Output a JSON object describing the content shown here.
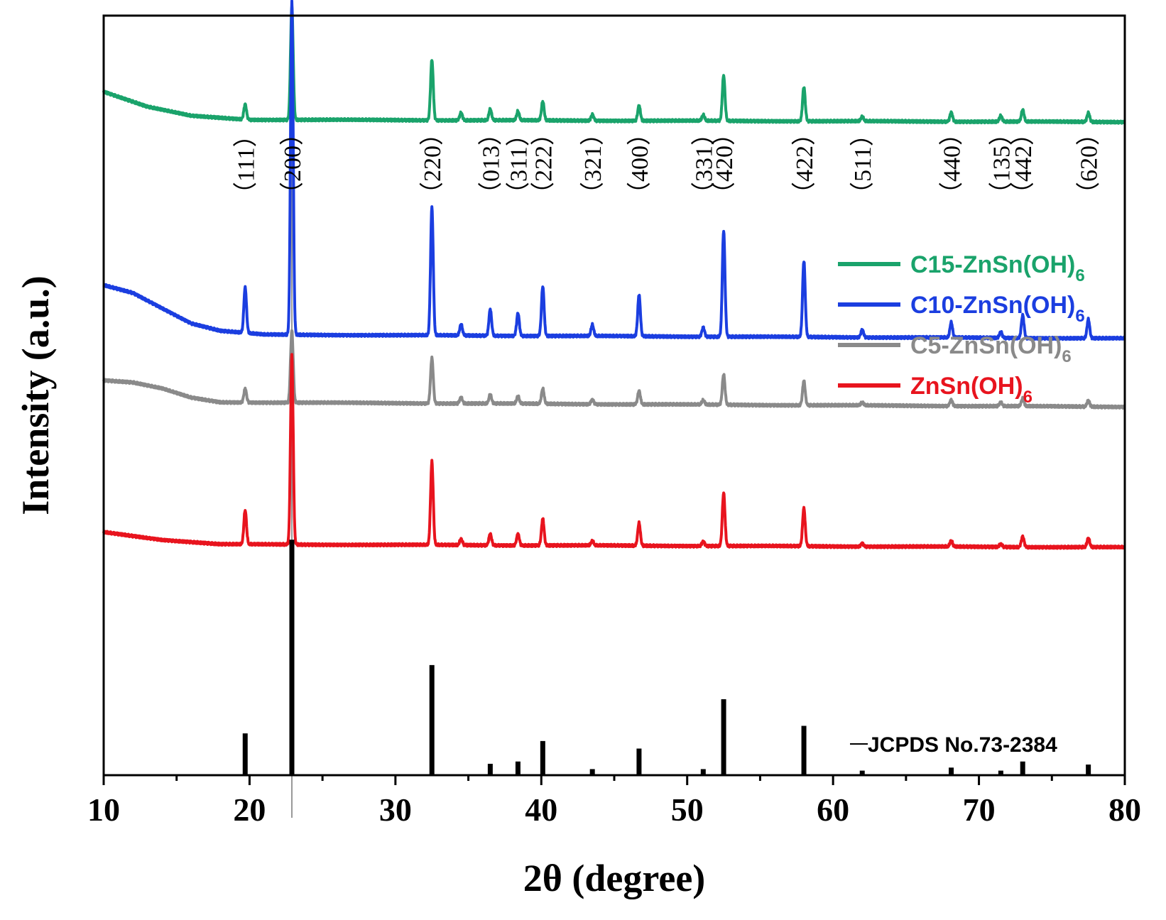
{
  "chart_data": {
    "type": "line",
    "title": "",
    "xlabel": "2θ (degree)",
    "ylabel": "Intensity (a.u.)",
    "xlim": [
      10,
      80
    ],
    "xticks": [
      10,
      20,
      30,
      40,
      50,
      60,
      70,
      80
    ],
    "tick_labels": [
      "10",
      "20",
      "30",
      "40",
      "50",
      "60",
      "70",
      "80"
    ],
    "legend_position": "right-middle",
    "series": [
      {
        "name": "C15-ZnSn(OH)6",
        "label_main": "C15-ZnSn(OH)",
        "label_sub": "6",
        "color": "#1aa36b",
        "offset": 0.86,
        "background": [
          [
            10,
            0.04
          ],
          [
            13,
            0.02
          ],
          [
            16,
            0.008
          ],
          [
            20,
            0.003
          ],
          [
            80,
            0.0
          ]
        ],
        "peaks": [
          [
            19.7,
            0.02
          ],
          [
            22.9,
            0.15
          ],
          [
            32.5,
            0.08
          ],
          [
            34.5,
            0.01
          ],
          [
            36.5,
            0.015
          ],
          [
            38.4,
            0.012
          ],
          [
            40.1,
            0.025
          ],
          [
            43.5,
            0.008
          ],
          [
            46.7,
            0.02
          ],
          [
            51.1,
            0.008
          ],
          [
            52.5,
            0.06
          ],
          [
            58.0,
            0.045
          ],
          [
            62.0,
            0.006
          ],
          [
            68.1,
            0.012
          ],
          [
            71.5,
            0.008
          ],
          [
            73.0,
            0.016
          ],
          [
            77.5,
            0.012
          ]
        ]
      },
      {
        "name": "C10-ZnSn(OH)6",
        "label_main": "C10-ZnSn(OH)",
        "label_sub": "6",
        "color": "#1b3ee0",
        "offset": 0.575,
        "background": [
          [
            10,
            0.07
          ],
          [
            12,
            0.06
          ],
          [
            14,
            0.04
          ],
          [
            16,
            0.02
          ],
          [
            18,
            0.01
          ],
          [
            21,
            0.005
          ],
          [
            80,
            0.0
          ]
        ],
        "peaks": [
          [
            19.7,
            0.06
          ],
          [
            22.9,
            0.44
          ],
          [
            32.5,
            0.17
          ],
          [
            34.5,
            0.015
          ],
          [
            36.5,
            0.035
          ],
          [
            38.4,
            0.03
          ],
          [
            40.1,
            0.065
          ],
          [
            43.5,
            0.015
          ],
          [
            46.7,
            0.055
          ],
          [
            51.1,
            0.012
          ],
          [
            52.5,
            0.14
          ],
          [
            58.0,
            0.1
          ],
          [
            62.0,
            0.01
          ],
          [
            68.1,
            0.02
          ],
          [
            71.5,
            0.008
          ],
          [
            73.0,
            0.03
          ],
          [
            77.5,
            0.025
          ]
        ]
      },
      {
        "name": "C5-ZnSn(OH)6",
        "label_main": "C5-ZnSn(OH)",
        "label_sub": "6",
        "color": "#8a8a8a",
        "offset": 0.485,
        "background": [
          [
            10,
            0.035
          ],
          [
            12,
            0.032
          ],
          [
            14,
            0.024
          ],
          [
            16,
            0.012
          ],
          [
            18,
            0.006
          ],
          [
            80,
            0.0
          ]
        ],
        "peaks": [
          [
            19.7,
            0.018
          ],
          [
            22.9,
            0.095
          ],
          [
            32.5,
            0.06
          ],
          [
            34.5,
            0.008
          ],
          [
            36.5,
            0.012
          ],
          [
            38.4,
            0.01
          ],
          [
            40.1,
            0.02
          ],
          [
            43.5,
            0.006
          ],
          [
            46.7,
            0.018
          ],
          [
            51.1,
            0.006
          ],
          [
            52.5,
            0.04
          ],
          [
            58.0,
            0.032
          ],
          [
            62.0,
            0.004
          ],
          [
            68.1,
            0.008
          ],
          [
            71.5,
            0.005
          ],
          [
            73.0,
            0.01
          ],
          [
            77.5,
            0.008
          ]
        ]
      },
      {
        "name": "ZnSn(OH)6",
        "label_main": "ZnSn(OH)",
        "label_sub": "6",
        "color": "#e8141e",
        "offset": 0.3,
        "background": [
          [
            10,
            0.02
          ],
          [
            14,
            0.01
          ],
          [
            18,
            0.004
          ],
          [
            80,
            0.0
          ]
        ],
        "peaks": [
          [
            19.7,
            0.045
          ],
          [
            22.9,
            0.25
          ],
          [
            32.5,
            0.11
          ],
          [
            34.5,
            0.008
          ],
          [
            36.5,
            0.015
          ],
          [
            38.4,
            0.015
          ],
          [
            40.1,
            0.035
          ],
          [
            43.5,
            0.006
          ],
          [
            46.7,
            0.03
          ],
          [
            51.1,
            0.006
          ],
          [
            52.5,
            0.07
          ],
          [
            58.0,
            0.05
          ],
          [
            62.0,
            0.004
          ],
          [
            68.1,
            0.008
          ],
          [
            71.5,
            0.004
          ],
          [
            73.0,
            0.014
          ],
          [
            77.5,
            0.012
          ]
        ]
      }
    ],
    "reference": {
      "name": "JCPDS No.73-2384",
      "color": "#000000",
      "positions": [
        19.7,
        22.9,
        32.5,
        36.5,
        38.4,
        40.1,
        43.5,
        46.7,
        51.1,
        52.5,
        58.0,
        62.0,
        68.1,
        71.5,
        73.0,
        77.5
      ],
      "intensities": [
        0.055,
        0.31,
        0.145,
        0.015,
        0.018,
        0.045,
        0.008,
        0.035,
        0.008,
        0.1,
        0.065,
        0.006,
        0.01,
        0.006,
        0.018,
        0.014
      ]
    },
    "reference_line_x": 22.9,
    "hkl_annotations": [
      {
        "label": "（111）",
        "x": 19.7
      },
      {
        "label": "（200）",
        "x": 22.9
      },
      {
        "label": "（220）",
        "x": 32.5
      },
      {
        "label": "（013）",
        "x": 36.5
      },
      {
        "label": "（311）",
        "x": 38.4
      },
      {
        "label": "（222）",
        "x": 40.1
      },
      {
        "label": "（321）",
        "x": 43.5
      },
      {
        "label": "（400）",
        "x": 46.7
      },
      {
        "label": "（331）",
        "x": 51.1
      },
      {
        "label": "（420）",
        "x": 52.5
      },
      {
        "label": "（422）",
        "x": 58.0
      },
      {
        "label": "（511）",
        "x": 62.0
      },
      {
        "label": "（440）",
        "x": 68.1
      },
      {
        "label": "（135）",
        "x": 71.5
      },
      {
        "label": "（442）",
        "x": 73.0
      },
      {
        "label": "（620）",
        "x": 77.5
      }
    ]
  }
}
